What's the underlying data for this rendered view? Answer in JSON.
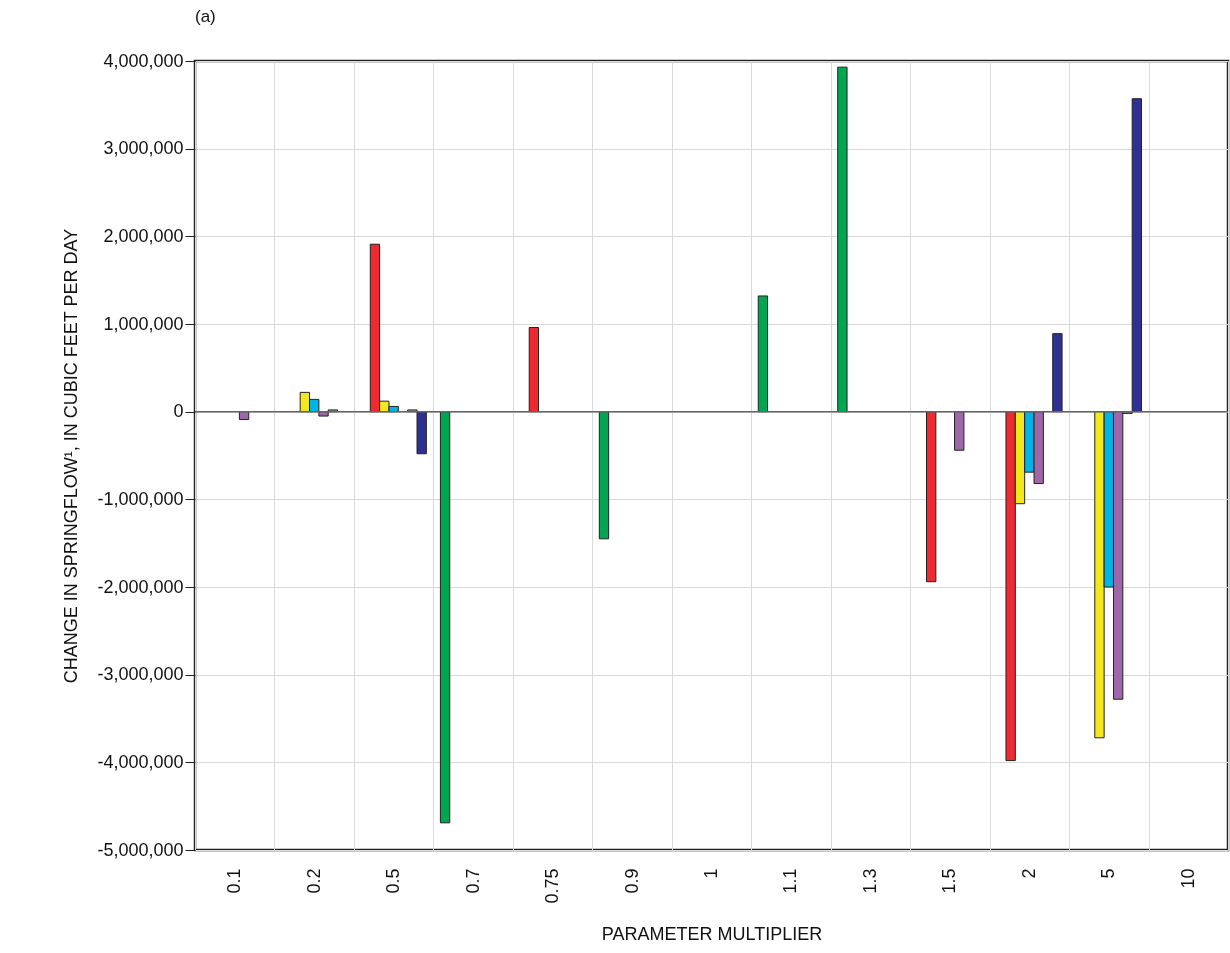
{
  "chart_data": {
    "type": "bar",
    "annotations": [
      "(a)"
    ],
    "xlabel": "PARAMETER MULTIPLIER",
    "ylabel": "CHANGE IN SPRINGFLOW¹, IN CUBIC FEET PER DAY",
    "categories": [
      "0.1",
      "0.2",
      "0.5",
      "0.7",
      "0.75",
      "0.9",
      "1",
      "1.1",
      "1.3",
      "1.5",
      "2",
      "5",
      "10"
    ],
    "series": [
      {
        "color": "#00a651",
        "values": [
          null,
          null,
          null,
          -4690000,
          null,
          -1450000,
          null,
          1320000,
          3930000,
          null,
          null,
          null,
          null
        ]
      },
      {
        "color": "#ed2a2f",
        "values": [
          null,
          null,
          1910000,
          null,
          960000,
          null,
          null,
          null,
          null,
          -1940000,
          -3980000,
          null,
          null
        ]
      },
      {
        "color": "#f5e71e",
        "values": [
          null,
          220000,
          120000,
          null,
          null,
          null,
          null,
          null,
          null,
          null,
          -1050000,
          -3720000,
          null
        ]
      },
      {
        "color": "#00b4e6",
        "values": [
          null,
          140000,
          60000,
          null,
          null,
          null,
          null,
          null,
          null,
          null,
          -690000,
          -2000000,
          null
        ]
      },
      {
        "color": "#a066aa",
        "values": [
          -90000,
          -50000,
          null,
          null,
          null,
          null,
          null,
          null,
          null,
          -440000,
          -820000,
          -3280000,
          null
        ]
      },
      {
        "color": "#9a9a9a",
        "values": [
          null,
          20000,
          20000,
          null,
          null,
          null,
          null,
          null,
          null,
          null,
          null,
          -20000,
          null
        ]
      },
      {
        "color": "#2e3192",
        "values": [
          null,
          null,
          -480000,
          null,
          null,
          null,
          null,
          null,
          null,
          null,
          890000,
          3570000,
          null
        ]
      }
    ],
    "ylim": [
      -5000000,
      4000000
    ],
    "yticks": [
      {
        "value": -5000000,
        "label": "-5,000,000"
      },
      {
        "value": -4000000,
        "label": "-4,000,000"
      },
      {
        "value": -3000000,
        "label": "-3,000,000"
      },
      {
        "value": -2000000,
        "label": "-2,000,000"
      },
      {
        "value": -1000000,
        "label": "-1,000,000"
      },
      0,
      {
        "value": 1000000,
        "label": "1,000,000"
      },
      {
        "value": 2000000,
        "label": "2,000,000"
      },
      {
        "value": 3000000,
        "label": "3,000,000"
      },
      {
        "value": 4000000,
        "label": "4,000,000"
      }
    ],
    "ref_lines": [
      {
        "axis": "y",
        "value": 0,
        "color": "#666666"
      }
    ],
    "grid": true
  }
}
